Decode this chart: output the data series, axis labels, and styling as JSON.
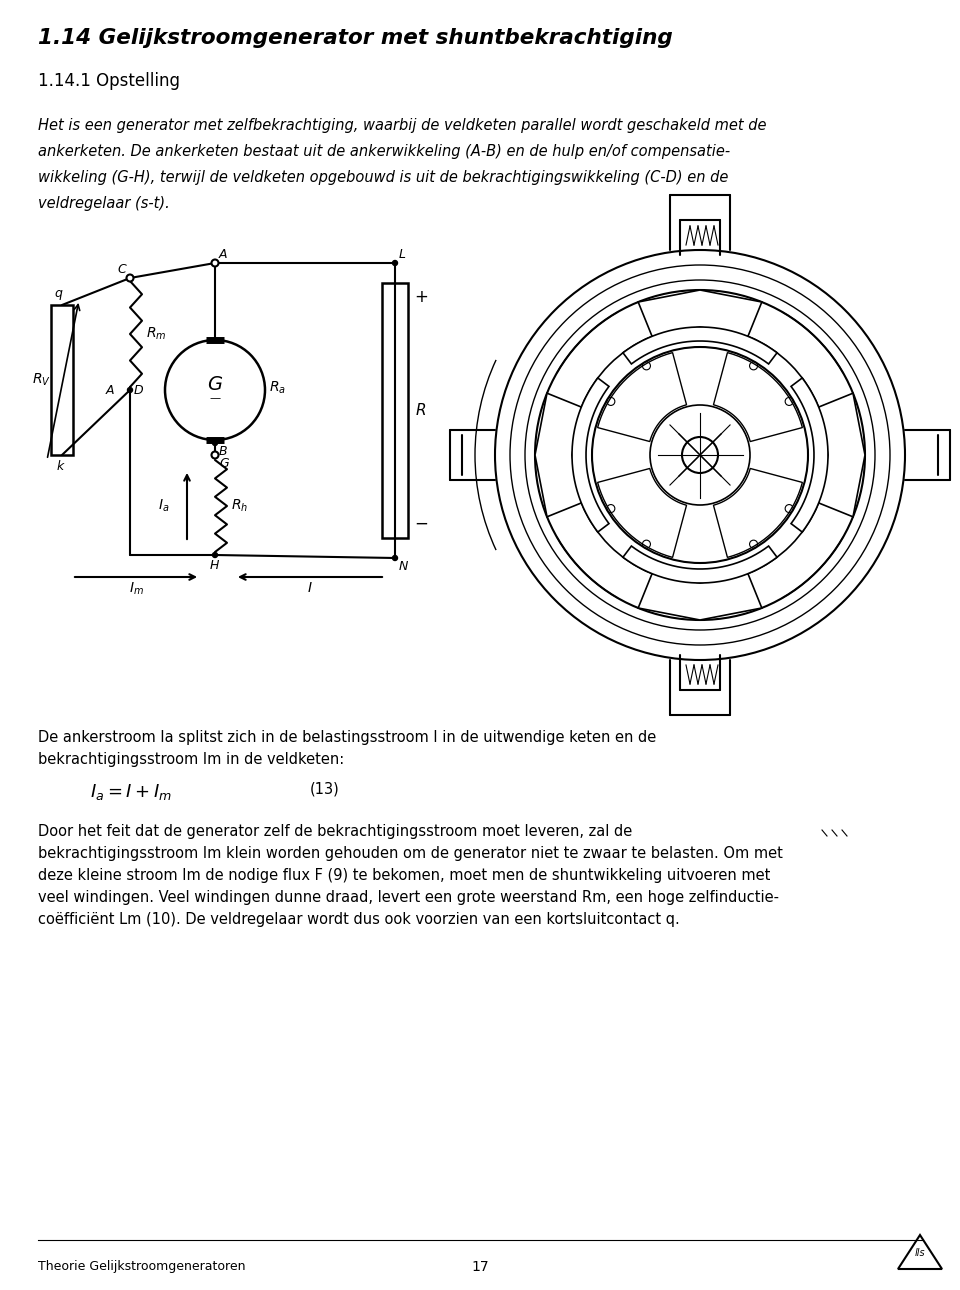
{
  "title": "1.14 Gelijkstroomgenerator met shuntbekrachtiging",
  "subtitle": "1.14.1 Opstelling",
  "para1_lines": [
    "Het is een generator met zelfbekrachtiging, waarbij de veldketen parallel wordt geschakeld met de",
    "ankerketen. De ankerketen bestaat uit de ankerwikkeling (A-B) en de hulp en/of compensatie-",
    "wikkeling (G-H), terwijl de veldketen opgebouwd is uit de bekrachtigingswikkeling (C-D) en de",
    "veldregelaar (s-t)."
  ],
  "para_below_line1": "De ankerstroom Ia splitst zich in de belastingsstroom I in de uitwendige keten en de",
  "para_below_line2": "bekrachtigingsstroom Im in de veldketen:",
  "formula": "$I_a = I + I_m$",
  "formula_number": "(13)",
  "para2_lines": [
    "Door het feit dat de generator zelf de bekrachtigingsstroom moet leveren, zal de",
    "bekrachtigingsstroom Im klein worden gehouden om de generator niet te zwaar te belasten. Om met",
    "deze kleine stroom Im de nodige flux F (9) te bekomen, moet men de shuntwikkeling uitvoeren met",
    "veel windingen. Veel windingen dunne draad, levert een grote weerstand Rm, een hoge zelfinductie-",
    "coëfficiënt Lm (10). De veldregelaar wordt dus ook voorzien van een kortsluitcontact q."
  ],
  "footer_left": "Theorie Gelijkstroomgeneratoren",
  "footer_center": "17",
  "bg_color": "#ffffff",
  "text_color": "#000000"
}
